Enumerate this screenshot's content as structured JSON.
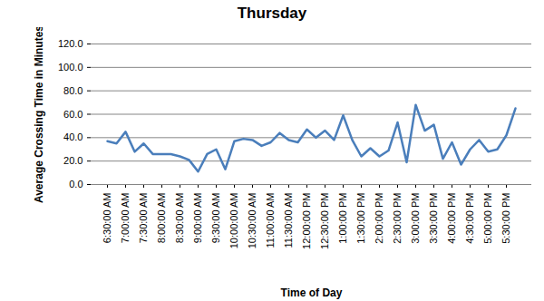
{
  "chart_data": {
    "type": "line",
    "title": "Thursday",
    "x_label": "Time of Day",
    "y_label": "Average Crossing Time in Minutes",
    "categories": [
      "6:30:00 AM",
      null,
      "7:00:00 AM",
      null,
      "7:30:00 AM",
      null,
      "8:00:00 AM",
      null,
      "8:30:00 AM",
      null,
      "9:00:00 AM",
      null,
      "9:30:00 AM",
      null,
      "10:00:00 AM",
      null,
      "10:30:00 AM",
      null,
      "11:00:00 AM",
      null,
      "11:30:00 AM",
      null,
      "12:00:00 PM",
      null,
      "12:30:00 PM",
      null,
      "1:00:00 PM",
      null,
      "1:30:00 PM",
      null,
      "2:00:00 PM",
      null,
      "2:30:00 PM",
      null,
      "3:00:00 PM",
      null,
      "3:30:00 PM",
      null,
      "4:00:00 PM",
      null,
      "4:30:00 PM",
      null,
      "5:00:00 PM",
      null,
      "5:30:00 PM",
      null
    ],
    "values": [
      37,
      35,
      45,
      28,
      35,
      26,
      26,
      26,
      24,
      21,
      11,
      26,
      30,
      13,
      37,
      39,
      38,
      33,
      36,
      44,
      38,
      36,
      47,
      40,
      46,
      38,
      59,
      38,
      24,
      31,
      24,
      29,
      53,
      19,
      68,
      46,
      51,
      22,
      36,
      17,
      30,
      38,
      28,
      30,
      42,
      65
    ],
    "color": "#4a7ebb",
    "ylim": [
      0,
      120
    ],
    "yticks": [
      {
        "value": 0,
        "label": "0.0"
      },
      {
        "value": 20,
        "label": "20.0"
      },
      {
        "value": 40,
        "label": "40.0"
      },
      {
        "value": 60,
        "label": "60.0"
      },
      {
        "value": 80,
        "label": "80.0"
      },
      {
        "value": 100,
        "label": "100.0"
      },
      {
        "value": 120,
        "label": "120.0"
      }
    ],
    "grid": true
  }
}
